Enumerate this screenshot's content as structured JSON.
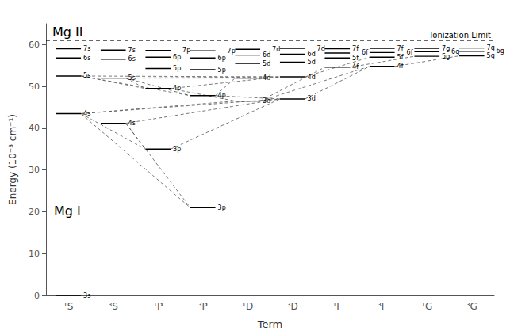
{
  "chart_data": {
    "type": "levels",
    "xlabel": "Term",
    "ylabel": "Energy (10⁻³ cm⁻¹)",
    "categories": [
      "¹S",
      "³S",
      "¹P",
      "³P",
      "¹D",
      "³D",
      "¹F",
      "³F",
      "¹G",
      "³G"
    ],
    "ylim": [
      0,
      65
    ],
    "yticks": [
      0,
      10,
      20,
      30,
      40,
      50,
      60
    ],
    "grid": false,
    "color": "black",
    "levels": [
      {
        "category": "¹S",
        "states": [
          {
            "label": "3s",
            "value": 0.0
          },
          {
            "label": "4s",
            "value": 43.5
          },
          {
            "label": "5s",
            "value": 52.5
          },
          {
            "label": "6s",
            "value": 56.8
          },
          {
            "label": "7s",
            "value": 59.0
          }
        ]
      },
      {
        "category": "³S",
        "states": [
          {
            "label": "4s",
            "value": 41.2
          },
          {
            "label": "5s",
            "value": 52.0
          },
          {
            "label": "6s",
            "value": 56.5
          },
          {
            "label": "7s",
            "value": 58.7
          }
        ]
      },
      {
        "category": "¹P",
        "states": [
          {
            "label": "3p",
            "value": 35.0
          },
          {
            "label": "4p",
            "value": 49.5
          },
          {
            "label": "5p",
            "value": 54.3
          },
          {
            "label": "6p",
            "value": 57.0
          },
          {
            "label": "7p",
            "value": 58.6
          }
        ]
      },
      {
        "category": "³P",
        "states": [
          {
            "label": "3p",
            "value": 21.0
          },
          {
            "label": "4p",
            "value": 47.8
          },
          {
            "label": "5p",
            "value": 54.0
          },
          {
            "label": "6p",
            "value": 56.8
          },
          {
            "label": "7p",
            "value": 58.5
          }
        ]
      },
      {
        "category": "¹D",
        "states": [
          {
            "label": "3d",
            "value": 46.5
          },
          {
            "label": "4d",
            "value": 52.0
          },
          {
            "label": "5d",
            "value": 55.5
          },
          {
            "label": "6d",
            "value": 57.5
          },
          {
            "label": "7d",
            "value": 58.9
          }
        ]
      },
      {
        "category": "³D",
        "states": [
          {
            "label": "3d",
            "value": 47.0
          },
          {
            "label": "4d",
            "value": 52.3
          },
          {
            "label": "5d",
            "value": 55.8
          },
          {
            "label": "6d",
            "value": 57.7
          },
          {
            "label": "7d",
            "value": 59.1
          }
        ]
      },
      {
        "category": "¹F",
        "states": [
          {
            "label": "4f",
            "value": 54.6
          },
          {
            "label": "5f",
            "value": 56.8
          },
          {
            "label": "6f",
            "value": 58.0
          },
          {
            "label": "7f",
            "value": 59.0
          }
        ]
      },
      {
        "category": "³F",
        "states": [
          {
            "label": "4f",
            "value": 54.8
          },
          {
            "label": "5f",
            "value": 57.0
          },
          {
            "label": "6f",
            "value": 58.1
          },
          {
            "label": "7f",
            "value": 59.1
          }
        ]
      },
      {
        "category": "¹G",
        "states": [
          {
            "label": "5g",
            "value": 57.2
          },
          {
            "label": "6g",
            "value": 58.3
          },
          {
            "label": "7g",
            "value": 59.1
          }
        ]
      },
      {
        "category": "³G",
        "states": [
          {
            "label": "5g",
            "value": 57.3
          },
          {
            "label": "6g",
            "value": 58.4
          },
          {
            "label": "7g",
            "value": 59.2
          }
        ]
      }
    ],
    "transitions": {
      "color": "#555555",
      "line_style": "dashed",
      "pairs": [
        [
          "¹S",
          "4s",
          "³P",
          "3p"
        ],
        [
          "¹S",
          "4s",
          "¹P",
          "3p"
        ],
        [
          "¹S",
          "4s",
          "³D",
          "3d"
        ],
        [
          "¹S",
          "4s",
          "¹D",
          "3d"
        ],
        [
          "¹S",
          "5s",
          "³P",
          "4p"
        ],
        [
          "¹S",
          "5s",
          "¹P",
          "4p"
        ],
        [
          "¹S",
          "5s",
          "³D",
          "4d"
        ],
        [
          "³S",
          "4s",
          "³P",
          "3p"
        ],
        [
          "³S",
          "4s",
          "¹P",
          "3p"
        ],
        [
          "³S",
          "4s",
          "³D",
          "3d"
        ],
        [
          "³S",
          "5s",
          "³P",
          "4p"
        ],
        [
          "³S",
          "5s",
          "¹P",
          "4p"
        ],
        [
          "³S",
          "5s",
          "³D",
          "4d"
        ],
        [
          "³S",
          "5s",
          "¹D",
          "4d"
        ],
        [
          "¹P",
          "3p",
          "³D",
          "3d"
        ],
        [
          "¹P",
          "4p",
          "¹D",
          "3d"
        ],
        [
          "¹P",
          "4p",
          "³D",
          "4d"
        ],
        [
          "³P",
          "4p",
          "³D",
          "3d"
        ],
        [
          "³P",
          "4p",
          "¹D",
          "4d"
        ],
        [
          "¹D",
          "3d",
          "¹F",
          "4f"
        ],
        [
          "¹D",
          "3d",
          "³F",
          "4f"
        ],
        [
          "³D",
          "3d",
          "³F",
          "4f"
        ],
        [
          "³D",
          "4d",
          "³F",
          "5f"
        ],
        [
          "¹F",
          "4f",
          "¹G",
          "5g"
        ],
        [
          "³F",
          "4f",
          "³G",
          "5g"
        ]
      ]
    },
    "ionization_limit": {
      "value": 61.0,
      "label": "Ionization Limit",
      "color": "black",
      "line_style": "dashed"
    },
    "annotations": [
      "Mg I",
      "Mg II"
    ]
  }
}
